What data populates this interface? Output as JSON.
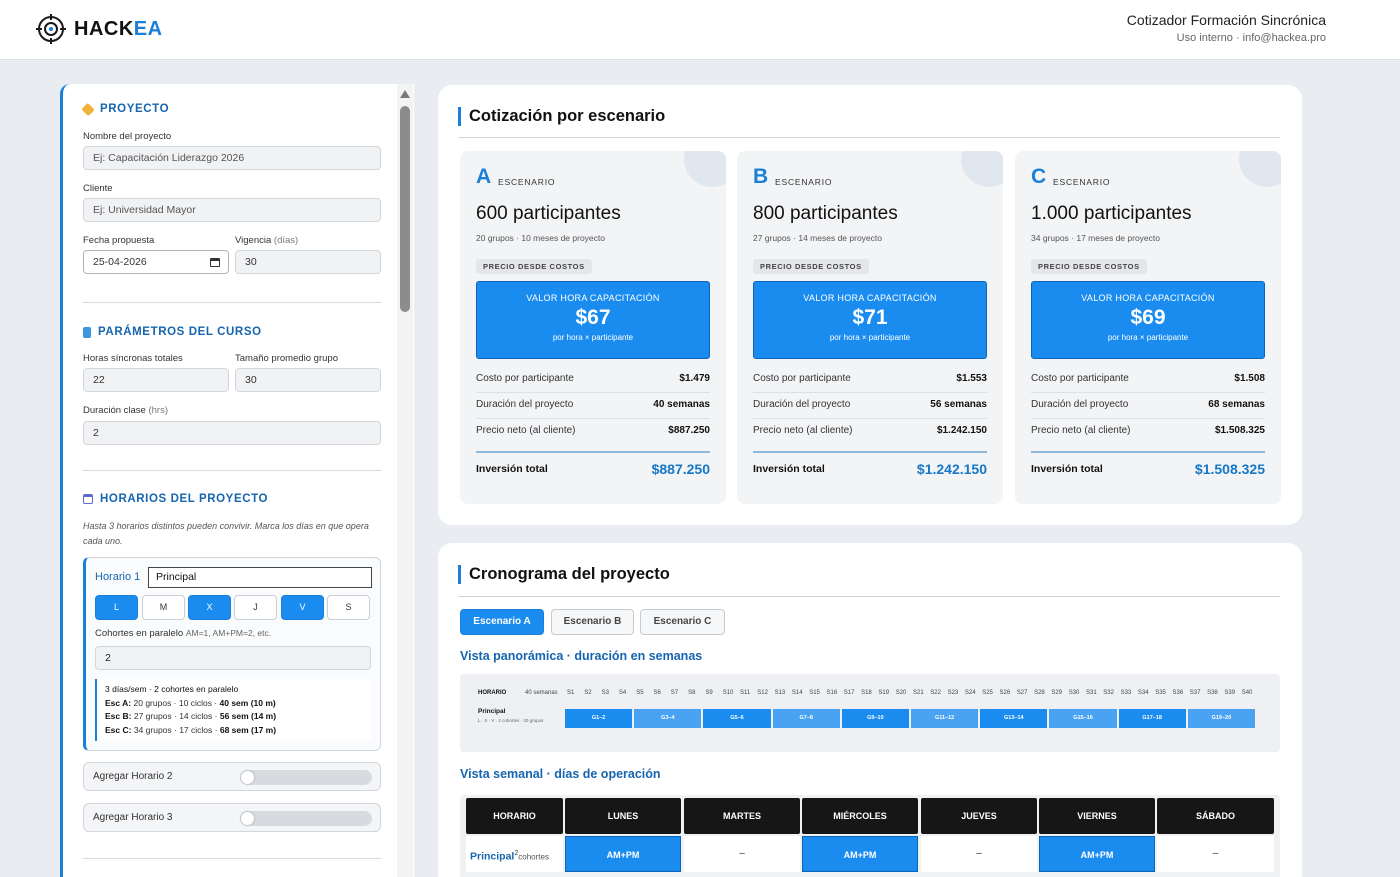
{
  "header": {
    "logo_prefix": "HACK",
    "logo_suffix": "EA",
    "title": "Cotizador Formación Sincrónica",
    "subtitle": "Uso interno · info@hackea.pro"
  },
  "sidebar": {
    "proyecto": {
      "heading": "PROYECTO",
      "nombre_label": "Nombre del proyecto",
      "nombre_placeholder": "Ej: Capacitación Liderazgo 2026",
      "cliente_label": "Cliente",
      "cliente_placeholder": "Ej: Universidad Mayor",
      "fecha_label": "Fecha propuesta",
      "fecha_value": "25-04-2026",
      "vigencia_label": "Vigencia",
      "vigencia_unit": "(días)",
      "vigencia_value": "30"
    },
    "parametros": {
      "heading": "PARÁMETROS DEL CURSO",
      "horas_label": "Horas síncronas totales",
      "horas_value": "22",
      "tamano_label": "Tamaño promedio grupo",
      "tamano_value": "30",
      "duracion_label": "Duración clase",
      "duracion_unit": "(hrs)",
      "duracion_value": "2"
    },
    "horarios": {
      "heading": "HORARIOS DEL PROYECTO",
      "hint": "Hasta 3 horarios distintos pueden convivir. Marca los días en que opera cada uno.",
      "horario1": {
        "label": "Horario 1",
        "name": "Principal",
        "days": [
          {
            "d": "L",
            "on": true
          },
          {
            "d": "M",
            "on": false
          },
          {
            "d": "X",
            "on": true
          },
          {
            "d": "J",
            "on": false
          },
          {
            "d": "V",
            "on": true
          },
          {
            "d": "S",
            "on": false
          }
        ],
        "cohortes_label": "Cohortes en paralelo",
        "cohortes_hint": "AM=1, AM+PM=2, etc.",
        "cohortes_value": "2",
        "summary_head": "3 días/sem · 2 cohortes en paralelo",
        "summary": [
          {
            "k": "Esc A:",
            "grupos": "20 grupos · 10 ciclos ·",
            "sem": "40 sem (10 m)"
          },
          {
            "k": "Esc B:",
            "grupos": "27 grupos · 14 ciclos ·",
            "sem": "56 sem (14 m)"
          },
          {
            "k": "Esc C:",
            "grupos": "34 grupos · 17 ciclos ·",
            "sem": "68 sem (17 m)"
          }
        ]
      },
      "add2": "Agregar Horario 2",
      "add3": "Agregar Horario 3"
    }
  },
  "cotizacion": {
    "title": "Cotización por escenario",
    "scenario_word": "ESCENARIO",
    "badge": "PRECIO DESDE COSTOS",
    "value_head": "VALOR HORA CAPACITACIÓN",
    "value_sub": "por hora × participante",
    "row1": "Costo por participante",
    "row2": "Duración del proyecto",
    "row3": "Precio neto (al cliente)",
    "total_label": "Inversión total",
    "scenarios": [
      {
        "letter": "A",
        "participants": "600 participantes",
        "sub": "20 grupos · 10 meses de proyecto",
        "hour_value": "$67",
        "costo": "$1.479",
        "duracion": "40 semanas",
        "neto": "$887.250",
        "total": "$887.250"
      },
      {
        "letter": "B",
        "participants": "800 participantes",
        "sub": "27 grupos · 14 meses de proyecto",
        "hour_value": "$71",
        "costo": "$1.553",
        "duracion": "56 semanas",
        "neto": "$1.242.150",
        "total": "$1.242.150"
      },
      {
        "letter": "C",
        "participants": "1.000 participantes",
        "sub": "34 grupos · 17 meses de proyecto",
        "hour_value": "$69",
        "costo": "$1.508",
        "duracion": "68 semanas",
        "neto": "$1.508.325",
        "total": "$1.508.325"
      }
    ]
  },
  "cronograma": {
    "title": "Cronograma del proyecto",
    "tabs": [
      "Escenario A",
      "Escenario B",
      "Escenario C"
    ],
    "active_tab": 0,
    "panorama_title": "Vista panorámica · duración en semanas",
    "gantt": {
      "col_horario": "HORARIO",
      "col_weeks": "40 semanas",
      "row_name": "Principal",
      "row_sub": "L · X · V · 2 cohortes · 20 grupos",
      "weeks": 40,
      "bars": [
        "G1–2",
        "G3–4",
        "G5–6",
        "G7–8",
        "G9–10",
        "G11–12",
        "G13–14",
        "G15–16",
        "G17–18",
        "G19–20"
      ]
    },
    "semanal_title": "Vista semanal · días de operación",
    "week": {
      "headers": [
        "HORARIO",
        "LUNES",
        "MARTES",
        "MIÉRCOLES",
        "JUEVES",
        "VIERNES",
        "SÁBADO"
      ],
      "row_name": "Principal",
      "row_sup": "2",
      "row_sub": "cohortes",
      "cells": [
        "AM+PM",
        "–",
        "AM+PM",
        "–",
        "AM+PM",
        "–"
      ]
    }
  },
  "colors": {
    "accent": "#1a8cf0",
    "brand": "#1565b0"
  }
}
